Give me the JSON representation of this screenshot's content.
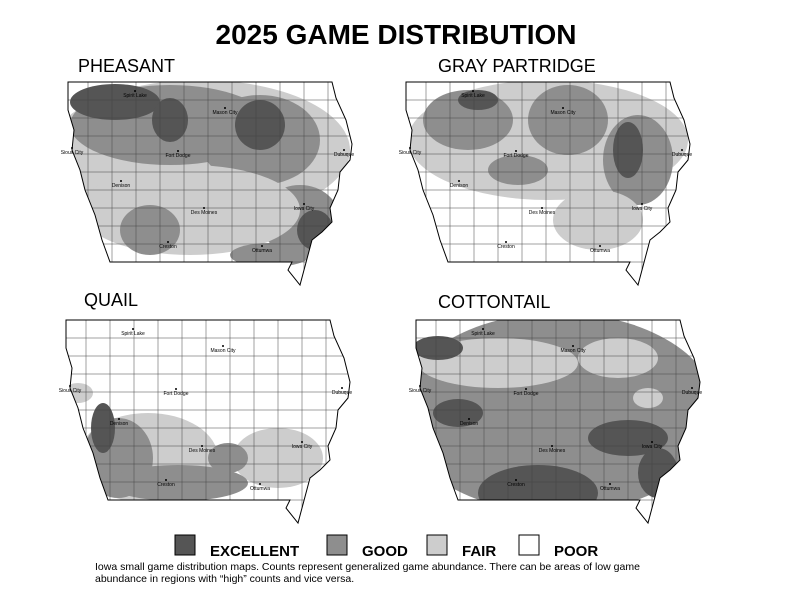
{
  "title": "2025 GAME DISTRIBUTION",
  "maps": [
    {
      "title": "PHEASANT",
      "cities": [
        "Spirit Lake",
        "Mason City",
        "Sioux City",
        "Fort Dodge",
        "Dubuque",
        "Denison",
        "Des Moines",
        "Iowa City",
        "Creston",
        "Ottumwa"
      ]
    },
    {
      "title": "GRAY PARTRIDGE",
      "cities": [
        "Spirit Lake",
        "Mason City",
        "Sioux City",
        "Fort Dodge",
        "Dubuque",
        "Denison",
        "Des Moines",
        "Iowa City",
        "Creston",
        "Ottumwa"
      ]
    },
    {
      "title": "QUAIL",
      "cities": [
        "Spirit Lake",
        "Mason City",
        "Sioux City",
        "Fort Dodge",
        "Dubuque",
        "Denison",
        "Des Moines",
        "Iowa City",
        "Creston",
        "Ottumwa"
      ]
    },
    {
      "title": "COTTONTAIL",
      "cities": [
        "Spirit Lake",
        "Mason City",
        "Sioux City",
        "Fort Dodge",
        "Dubuque",
        "Denison",
        "Des Moines",
        "Iowa City",
        "Creston",
        "Ottumwa"
      ]
    }
  ],
  "legend": [
    "EXCELLENT",
    "GOOD",
    "FAIR",
    "POOR"
  ],
  "note": "Iowa small game distribution maps. Counts represent generalized game abundance.  There can be areas of low game abundance in regions with “high” counts and vice versa."
}
